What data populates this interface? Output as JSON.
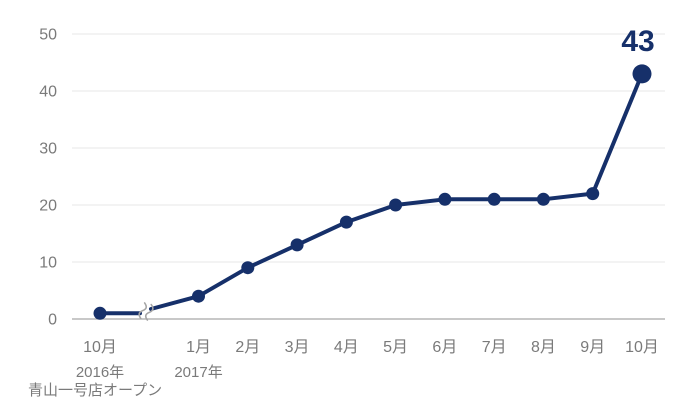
{
  "chart_data": {
    "type": "line",
    "title": "",
    "xlabel": "",
    "ylabel": "",
    "categories": [
      "10月",
      "1月",
      "2月",
      "3月",
      "4月",
      "5月",
      "6月",
      "7月",
      "8月",
      "9月",
      "10月"
    ],
    "values": [
      1,
      4,
      9,
      13,
      17,
      20,
      21,
      21,
      21,
      22,
      43
    ],
    "category_slots": [
      0,
      2,
      3,
      4,
      5,
      6,
      7,
      8,
      9,
      10,
      11
    ],
    "year_row": [
      {
        "text": "2016年",
        "category_index": 0
      },
      {
        "text": "2017年",
        "category_index": 1
      }
    ],
    "yticks": [
      0,
      10,
      20,
      30,
      40,
      50
    ],
    "ylim": [
      0,
      50
    ],
    "grid": true,
    "legend": "none",
    "axis_break_after_category": 0,
    "data_label": {
      "text": "43",
      "category_index": 10
    },
    "annotation": "青山一号店オープン",
    "colors": {
      "series": "#16306A",
      "grid": "#E7E7E7",
      "axis": "#A6A6A6",
      "labels": "#7A7A7A",
      "background": "#FFFFFF"
    }
  }
}
